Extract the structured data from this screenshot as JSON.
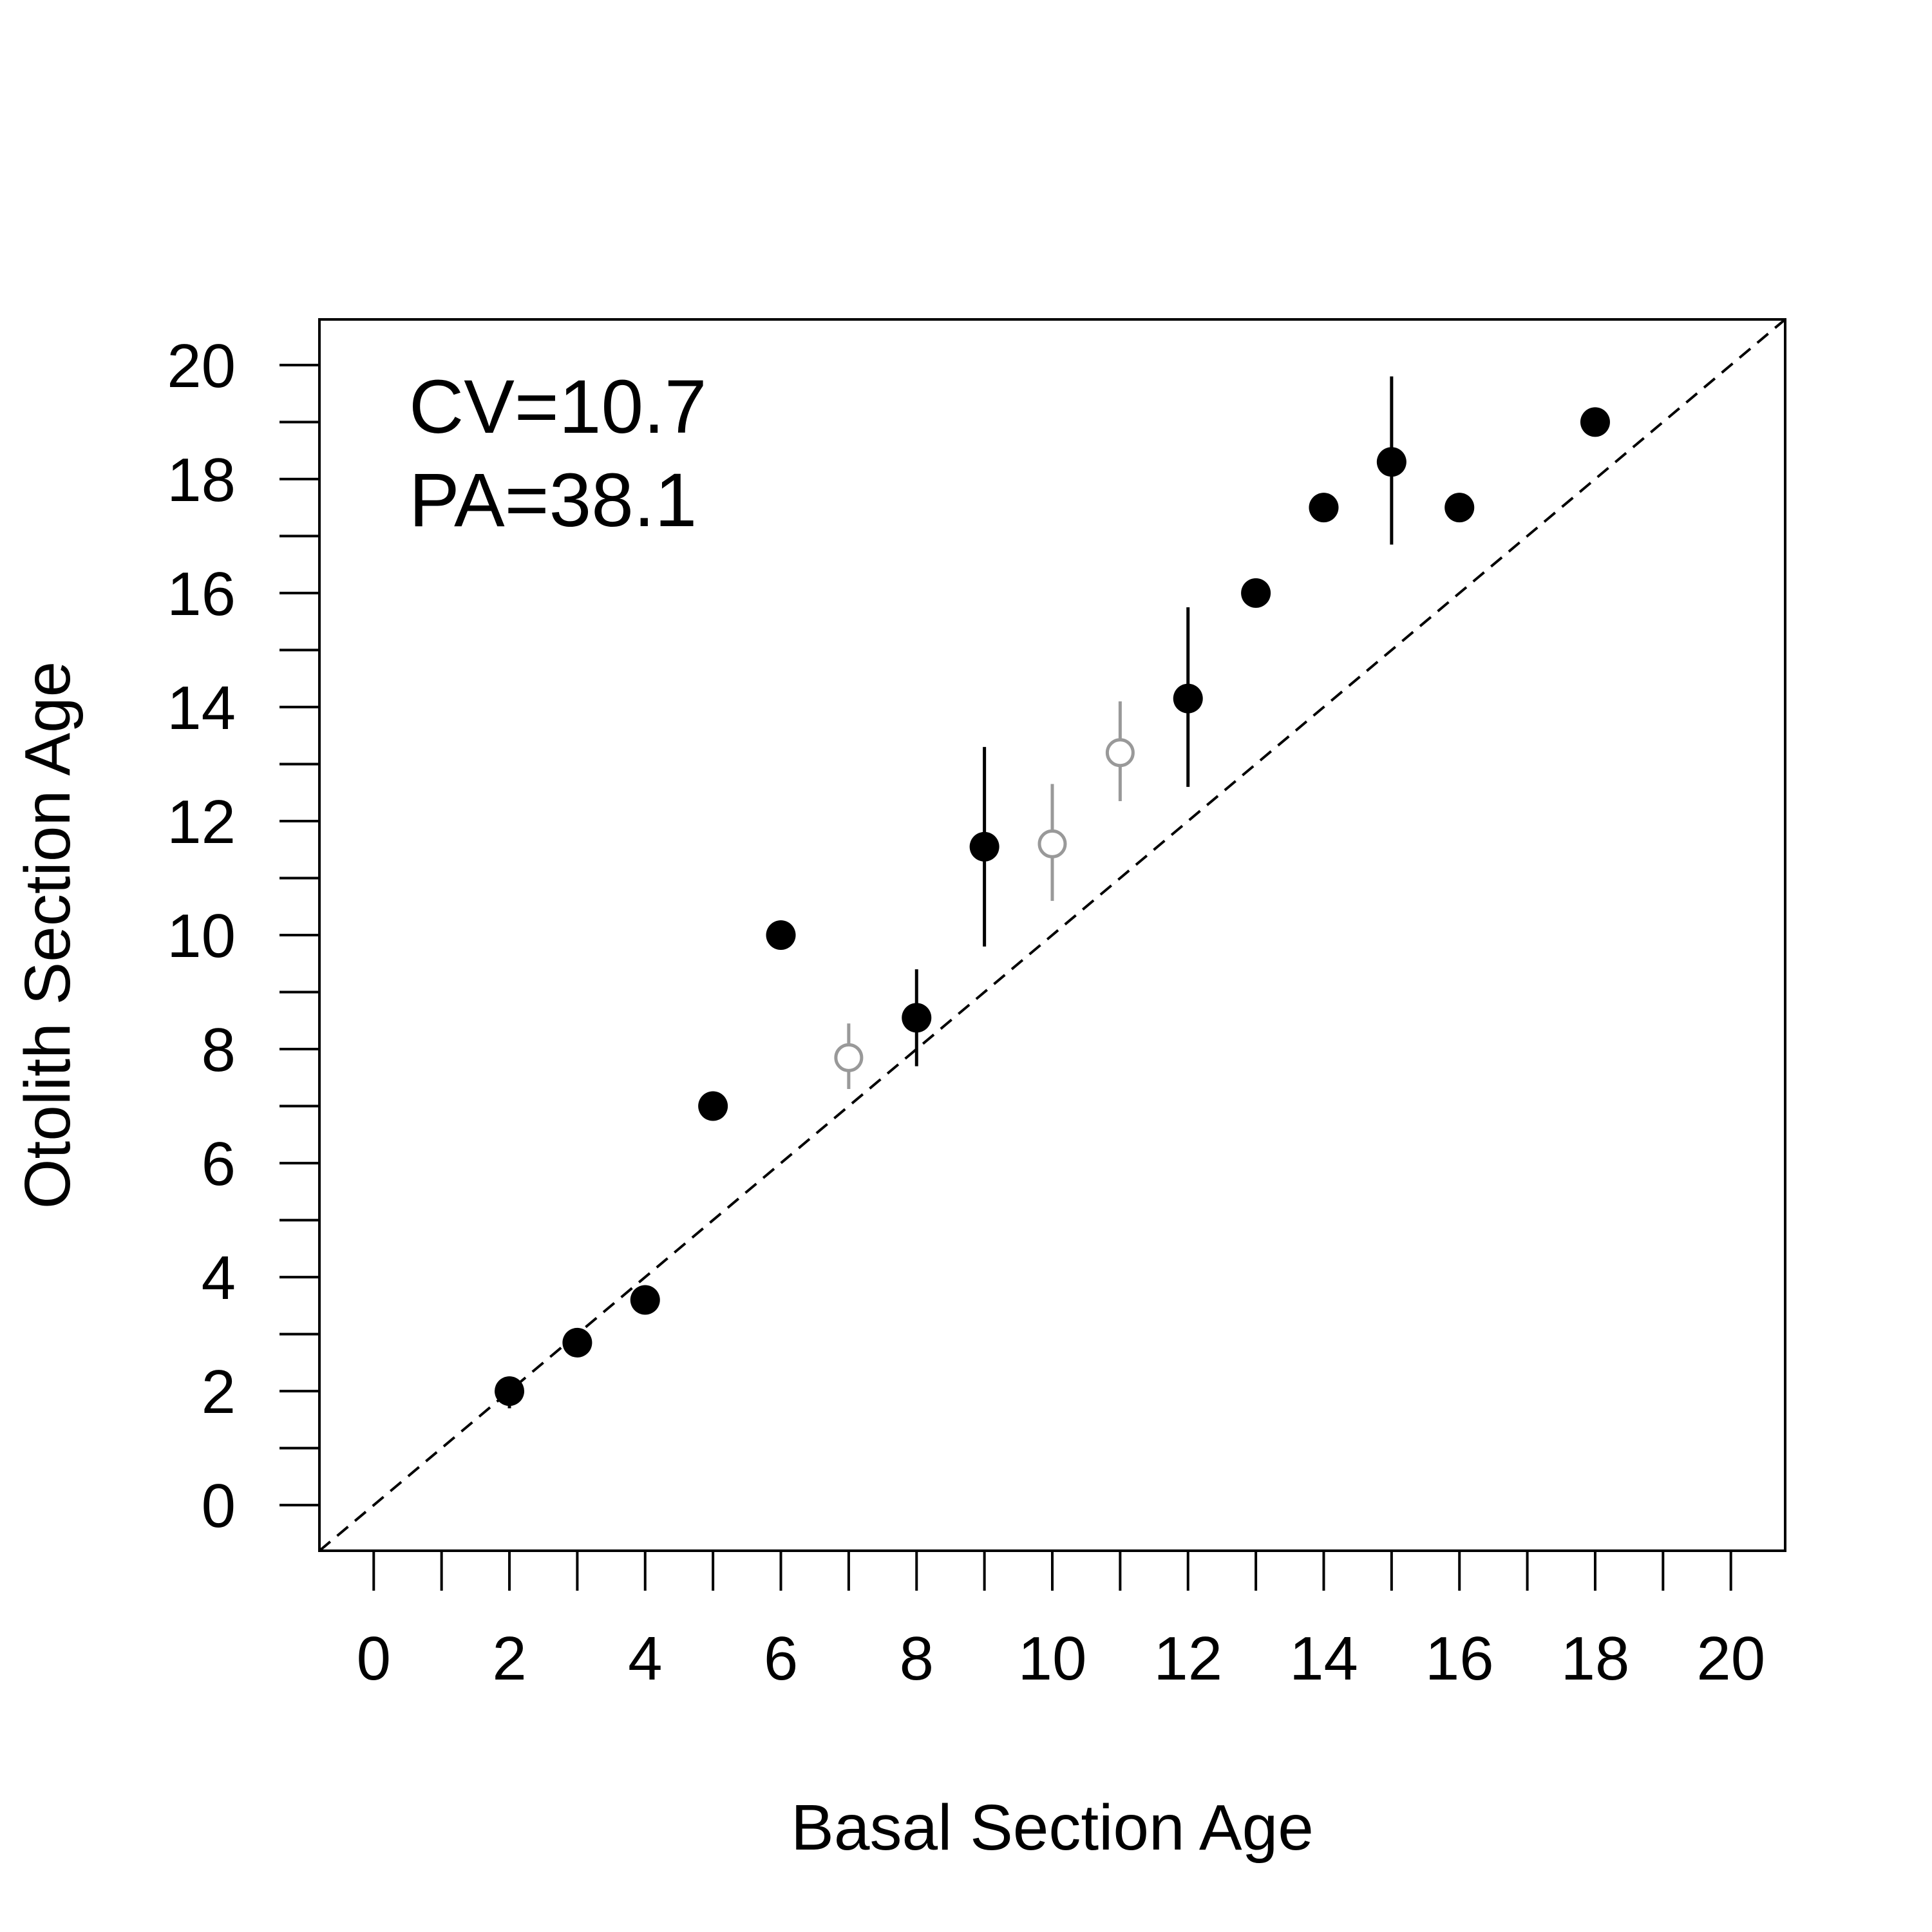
{
  "chart_data": {
    "type": "scatter",
    "xlabel": "Basal Section Age",
    "ylabel": "Otolith Section Age",
    "xlim": [
      -0.8,
      20.8
    ],
    "ylim": [
      -0.8,
      20.8
    ],
    "x_ticks": [
      0,
      1,
      2,
      3,
      4,
      5,
      6,
      7,
      8,
      9,
      10,
      11,
      12,
      13,
      14,
      15,
      16,
      17,
      18,
      19,
      20
    ],
    "x_tick_labels": [
      "0",
      "2",
      "4",
      "6",
      "8",
      "10",
      "12",
      "14",
      "16",
      "18",
      "20"
    ],
    "y_ticks": [
      0,
      1,
      2,
      3,
      4,
      5,
      6,
      7,
      8,
      9,
      10,
      11,
      12,
      13,
      14,
      15,
      16,
      17,
      18,
      19,
      20
    ],
    "y_tick_labels": [
      "0",
      "2",
      "4",
      "6",
      "8",
      "10",
      "12",
      "14",
      "16",
      "18",
      "20"
    ],
    "reference_line": {
      "style": "dashed",
      "slope": 1,
      "intercept": 0,
      "color": "#000000"
    },
    "grid": false,
    "annotations": [
      "CV=10.7",
      "PA=38.1"
    ],
    "series": [
      {
        "marker": "filled-circle",
        "color": "#000000",
        "points": [
          {
            "x": 2,
            "y": 2.0,
            "ylow": 1.7,
            "yhigh": 2.25
          },
          {
            "x": 3,
            "y": 2.85,
            "ylow": 2.6,
            "yhigh": 3.0
          },
          {
            "x": 4,
            "y": 3.6,
            "ylow": 3.35,
            "yhigh": 3.85
          },
          {
            "x": 5,
            "y": 7.0
          },
          {
            "x": 6,
            "y": 10.0
          },
          {
            "x": 8,
            "y": 8.55,
            "ylow": 7.7,
            "yhigh": 9.4
          },
          {
            "x": 9,
            "y": 11.55,
            "ylow": 9.8,
            "yhigh": 13.3
          },
          {
            "x": 12,
            "y": 14.15,
            "ylow": 12.6,
            "yhigh": 15.75
          },
          {
            "x": 13,
            "y": 16.0
          },
          {
            "x": 14,
            "y": 17.5
          },
          {
            "x": 15,
            "y": 18.3,
            "ylow": 16.85,
            "yhigh": 19.8
          },
          {
            "x": 16,
            "y": 17.5
          },
          {
            "x": 18,
            "y": 19.0
          }
        ]
      },
      {
        "marker": "open-circle",
        "color": "#999999",
        "points": [
          {
            "x": 7,
            "y": 7.85,
            "ylow": 7.3,
            "yhigh": 8.45
          },
          {
            "x": 10,
            "y": 11.6,
            "ylow": 10.6,
            "yhigh": 12.65
          },
          {
            "x": 11,
            "y": 13.2,
            "ylow": 12.35,
            "yhigh": 14.1
          }
        ]
      }
    ]
  }
}
